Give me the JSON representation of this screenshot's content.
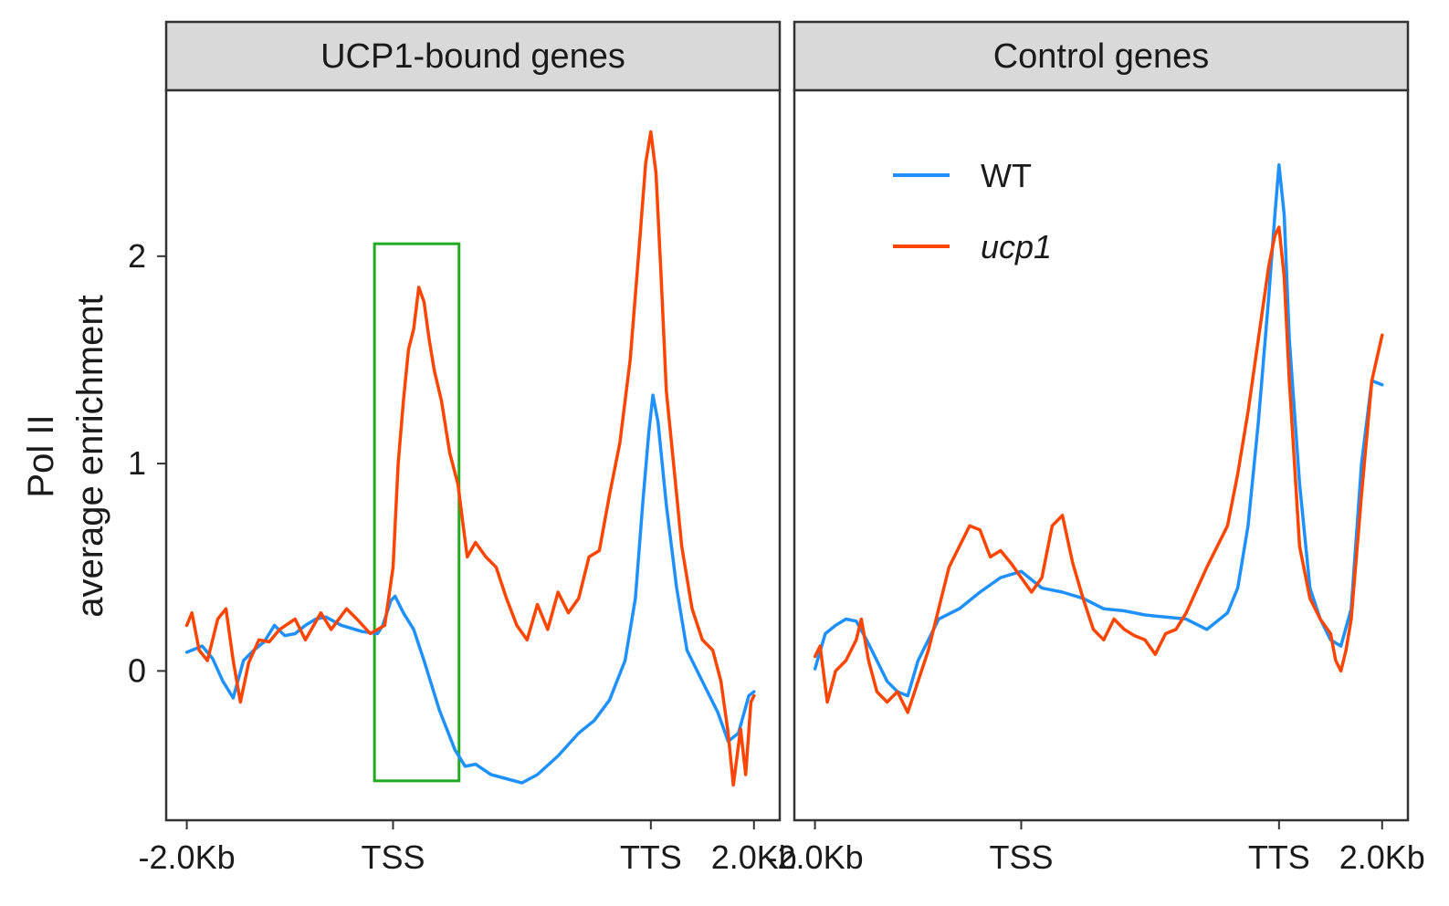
{
  "colors": {
    "wt": "#1E90FF",
    "ucp1": "#FF4500",
    "highlight_box": "#22AA22",
    "strip_bg": "#D9D9D9",
    "panel_border": "#333333"
  },
  "chart_data": {
    "type": "line",
    "ylabel_line1": "Pol II",
    "ylabel_line2": "average enrichment",
    "ylim": [
      -0.72,
      2.8
    ],
    "yticks": [
      0,
      1,
      2
    ],
    "x_ticks": [
      {
        "pos": -2.0,
        "label": "-2.0Kb"
      },
      {
        "pos": 0.0,
        "label": "TSS"
      },
      {
        "pos": 2.5,
        "label": "TTS"
      },
      {
        "pos": 3.5,
        "label": "2.0Kb"
      }
    ],
    "xlim": [
      -2.2,
      3.75
    ],
    "legend": {
      "location": "inside top-left of right panel",
      "entries": [
        {
          "key": "wt",
          "label": "WT",
          "italic": false
        },
        {
          "key": "ucp1",
          "label": "ucp1",
          "italic": true
        }
      ]
    },
    "highlight_region": {
      "panel": "ucp1_bound",
      "x": [
        -0.18,
        0.64
      ],
      "y": [
        -0.53,
        2.06
      ]
    },
    "facets": [
      {
        "id": "ucp1_bound",
        "title": "UCP1-bound genes",
        "series": [
          {
            "key": "wt",
            "points": [
              [
                -2.0,
                0.09
              ],
              [
                -1.85,
                0.12
              ],
              [
                -1.75,
                0.06
              ],
              [
                -1.65,
                -0.05
              ],
              [
                -1.55,
                -0.13
              ],
              [
                -1.45,
                0.05
              ],
              [
                -1.35,
                0.1
              ],
              [
                -1.25,
                0.14
              ],
              [
                -1.15,
                0.22
              ],
              [
                -1.05,
                0.17
              ],
              [
                -0.95,
                0.18
              ],
              [
                -0.85,
                0.22
              ],
              [
                -0.75,
                0.25
              ],
              [
                -0.65,
                0.26
              ],
              [
                -0.5,
                0.22
              ],
              [
                -0.3,
                0.19
              ],
              [
                -0.15,
                0.18
              ],
              [
                -0.1,
                0.22
              ],
              [
                -0.02,
                0.34
              ],
              [
                0.02,
                0.36
              ],
              [
                0.1,
                0.28
              ],
              [
                0.2,
                0.2
              ],
              [
                0.3,
                0.05
              ],
              [
                0.45,
                -0.19
              ],
              [
                0.6,
                -0.38
              ],
              [
                0.7,
                -0.46
              ],
              [
                0.8,
                -0.45
              ],
              [
                0.95,
                -0.5
              ],
              [
                1.1,
                -0.52
              ],
              [
                1.25,
                -0.54
              ],
              [
                1.4,
                -0.5
              ],
              [
                1.6,
                -0.41
              ],
              [
                1.8,
                -0.3
              ],
              [
                1.95,
                -0.24
              ],
              [
                2.1,
                -0.14
              ],
              [
                2.25,
                0.05
              ],
              [
                2.35,
                0.35
              ],
              [
                2.42,
                0.8
              ],
              [
                2.48,
                1.15
              ],
              [
                2.52,
                1.33
              ],
              [
                2.57,
                1.2
              ],
              [
                2.65,
                0.8
              ],
              [
                2.75,
                0.4
              ],
              [
                2.85,
                0.1
              ],
              [
                2.95,
                0.0
              ],
              [
                3.05,
                -0.1
              ],
              [
                3.15,
                -0.2
              ],
              [
                3.25,
                -0.34
              ],
              [
                3.35,
                -0.3
              ],
              [
                3.45,
                -0.12
              ],
              [
                3.5,
                -0.1
              ]
            ]
          },
          {
            "key": "ucp1",
            "points": [
              [
                -2.0,
                0.22
              ],
              [
                -1.95,
                0.28
              ],
              [
                -1.88,
                0.1
              ],
              [
                -1.8,
                0.05
              ],
              [
                -1.7,
                0.25
              ],
              [
                -1.62,
                0.3
              ],
              [
                -1.55,
                0.05
              ],
              [
                -1.48,
                -0.15
              ],
              [
                -1.4,
                0.04
              ],
              [
                -1.3,
                0.15
              ],
              [
                -1.2,
                0.14
              ],
              [
                -1.1,
                0.2
              ],
              [
                -0.95,
                0.25
              ],
              [
                -0.85,
                0.15
              ],
              [
                -0.7,
                0.28
              ],
              [
                -0.6,
                0.2
              ],
              [
                -0.45,
                0.3
              ],
              [
                -0.35,
                0.25
              ],
              [
                -0.22,
                0.18
              ],
              [
                -0.08,
                0.22
              ],
              [
                0.0,
                0.5
              ],
              [
                0.05,
                1.0
              ],
              [
                0.1,
                1.3
              ],
              [
                0.15,
                1.55
              ],
              [
                0.2,
                1.65
              ],
              [
                0.25,
                1.85
              ],
              [
                0.3,
                1.78
              ],
              [
                0.35,
                1.6
              ],
              [
                0.4,
                1.45
              ],
              [
                0.47,
                1.3
              ],
              [
                0.55,
                1.05
              ],
              [
                0.63,
                0.9
              ],
              [
                0.68,
                0.7
              ],
              [
                0.72,
                0.55
              ],
              [
                0.8,
                0.62
              ],
              [
                0.9,
                0.55
              ],
              [
                1.0,
                0.5
              ],
              [
                1.1,
                0.35
              ],
              [
                1.2,
                0.22
              ],
              [
                1.3,
                0.15
              ],
              [
                1.4,
                0.32
              ],
              [
                1.5,
                0.2
              ],
              [
                1.6,
                0.38
              ],
              [
                1.7,
                0.28
              ],
              [
                1.8,
                0.35
              ],
              [
                1.9,
                0.55
              ],
              [
                2.0,
                0.58
              ],
              [
                2.1,
                0.85
              ],
              [
                2.2,
                1.1
              ],
              [
                2.3,
                1.5
              ],
              [
                2.38,
                2.0
              ],
              [
                2.45,
                2.45
              ],
              [
                2.5,
                2.6
              ],
              [
                2.55,
                2.4
              ],
              [
                2.6,
                1.9
              ],
              [
                2.65,
                1.35
              ],
              [
                2.72,
                1.0
              ],
              [
                2.8,
                0.6
              ],
              [
                2.9,
                0.3
              ],
              [
                3.0,
                0.15
              ],
              [
                3.1,
                0.1
              ],
              [
                3.18,
                -0.05
              ],
              [
                3.25,
                -0.3
              ],
              [
                3.3,
                -0.55
              ],
              [
                3.37,
                -0.28
              ],
              [
                3.42,
                -0.5
              ],
              [
                3.47,
                -0.15
              ],
              [
                3.5,
                -0.12
              ]
            ]
          }
        ]
      },
      {
        "id": "control",
        "title": "Control genes",
        "series": [
          {
            "key": "wt",
            "points": [
              [
                -2.0,
                0.01
              ],
              [
                -1.9,
                0.18
              ],
              [
                -1.8,
                0.22
              ],
              [
                -1.7,
                0.25
              ],
              [
                -1.6,
                0.24
              ],
              [
                -1.5,
                0.15
              ],
              [
                -1.4,
                0.05
              ],
              [
                -1.3,
                -0.05
              ],
              [
                -1.2,
                -0.1
              ],
              [
                -1.1,
                -0.12
              ],
              [
                -1.0,
                0.05
              ],
              [
                -0.9,
                0.15
              ],
              [
                -0.8,
                0.25
              ],
              [
                -0.6,
                0.3
              ],
              [
                -0.4,
                0.38
              ],
              [
                -0.2,
                0.45
              ],
              [
                0.0,
                0.48
              ],
              [
                0.2,
                0.4
              ],
              [
                0.4,
                0.38
              ],
              [
                0.6,
                0.35
              ],
              [
                0.8,
                0.3
              ],
              [
                1.0,
                0.29
              ],
              [
                1.2,
                0.27
              ],
              [
                1.4,
                0.26
              ],
              [
                1.6,
                0.25
              ],
              [
                1.8,
                0.2
              ],
              [
                2.0,
                0.28
              ],
              [
                2.1,
                0.4
              ],
              [
                2.2,
                0.7
              ],
              [
                2.3,
                1.2
              ],
              [
                2.4,
                1.8
              ],
              [
                2.46,
                2.2
              ],
              [
                2.5,
                2.44
              ],
              [
                2.55,
                2.2
              ],
              [
                2.6,
                1.6
              ],
              [
                2.7,
                0.9
              ],
              [
                2.8,
                0.4
              ],
              [
                2.9,
                0.25
              ],
              [
                3.0,
                0.15
              ],
              [
                3.1,
                0.12
              ],
              [
                3.2,
                0.3
              ],
              [
                3.3,
                1.0
              ],
              [
                3.4,
                1.4
              ],
              [
                3.5,
                1.38
              ]
            ]
          },
          {
            "key": "ucp1",
            "points": [
              [
                -2.0,
                0.07
              ],
              [
                -1.95,
                0.12
              ],
              [
                -1.88,
                -0.15
              ],
              [
                -1.8,
                0.0
              ],
              [
                -1.7,
                0.05
              ],
              [
                -1.6,
                0.15
              ],
              [
                -1.55,
                0.25
              ],
              [
                -1.48,
                0.05
              ],
              [
                -1.4,
                -0.1
              ],
              [
                -1.3,
                -0.15
              ],
              [
                -1.2,
                -0.1
              ],
              [
                -1.1,
                -0.2
              ],
              [
                -1.0,
                -0.05
              ],
              [
                -0.9,
                0.1
              ],
              [
                -0.8,
                0.3
              ],
              [
                -0.7,
                0.5
              ],
              [
                -0.6,
                0.6
              ],
              [
                -0.5,
                0.7
              ],
              [
                -0.4,
                0.68
              ],
              [
                -0.3,
                0.55
              ],
              [
                -0.2,
                0.58
              ],
              [
                -0.1,
                0.52
              ],
              [
                0.0,
                0.45
              ],
              [
                0.1,
                0.38
              ],
              [
                0.2,
                0.45
              ],
              [
                0.3,
                0.7
              ],
              [
                0.4,
                0.75
              ],
              [
                0.5,
                0.52
              ],
              [
                0.6,
                0.35
              ],
              [
                0.7,
                0.2
              ],
              [
                0.8,
                0.15
              ],
              [
                0.9,
                0.25
              ],
              [
                1.0,
                0.2
              ],
              [
                1.1,
                0.17
              ],
              [
                1.2,
                0.15
              ],
              [
                1.3,
                0.08
              ],
              [
                1.4,
                0.18
              ],
              [
                1.5,
                0.2
              ],
              [
                1.6,
                0.28
              ],
              [
                1.8,
                0.5
              ],
              [
                2.0,
                0.7
              ],
              [
                2.1,
                0.95
              ],
              [
                2.2,
                1.25
              ],
              [
                2.3,
                1.6
              ],
              [
                2.4,
                1.95
              ],
              [
                2.46,
                2.1
              ],
              [
                2.5,
                2.14
              ],
              [
                2.55,
                1.9
              ],
              [
                2.6,
                1.4
              ],
              [
                2.7,
                0.6
              ],
              [
                2.8,
                0.35
              ],
              [
                2.9,
                0.25
              ],
              [
                3.0,
                0.18
              ],
              [
                3.05,
                0.05
              ],
              [
                3.1,
                0.0
              ],
              [
                3.15,
                0.1
              ],
              [
                3.2,
                0.25
              ],
              [
                3.3,
                0.85
              ],
              [
                3.4,
                1.4
              ],
              [
                3.5,
                1.62
              ]
            ]
          }
        ]
      }
    ]
  }
}
